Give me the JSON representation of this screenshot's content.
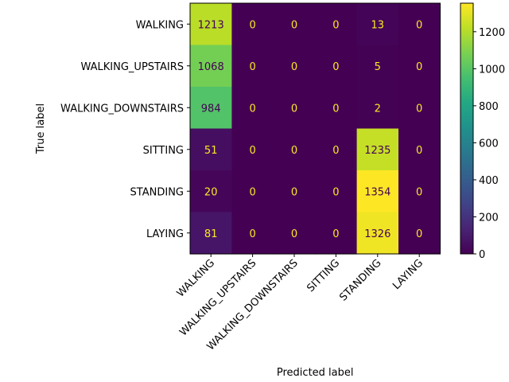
{
  "chart_data": {
    "type": "heatmap",
    "xlabel": "Predicted label",
    "ylabel": "True label",
    "row_labels": [
      "WALKING",
      "WALKING_UPSTAIRS",
      "WALKING_DOWNSTAIRS",
      "SITTING",
      "STANDING",
      "LAYING"
    ],
    "col_labels": [
      "WALKING",
      "WALKING_UPSTAIRS",
      "WALKING_DOWNSTAIRS",
      "SITTING",
      "STANDING",
      "LAYING"
    ],
    "values": [
      [
        1213,
        0,
        0,
        0,
        13,
        0
      ],
      [
        1068,
        0,
        0,
        0,
        5,
        0
      ],
      [
        984,
        0,
        0,
        0,
        2,
        0
      ],
      [
        51,
        0,
        0,
        0,
        1235,
        0
      ],
      [
        20,
        0,
        0,
        0,
        1354,
        0
      ],
      [
        81,
        0,
        0,
        0,
        1326,
        0
      ]
    ],
    "vmin": 0,
    "vmax": 1354,
    "colormap": "viridis",
    "colorbar_ticks": [
      0,
      200,
      400,
      600,
      800,
      1000,
      1200
    ],
    "grid": false
  }
}
